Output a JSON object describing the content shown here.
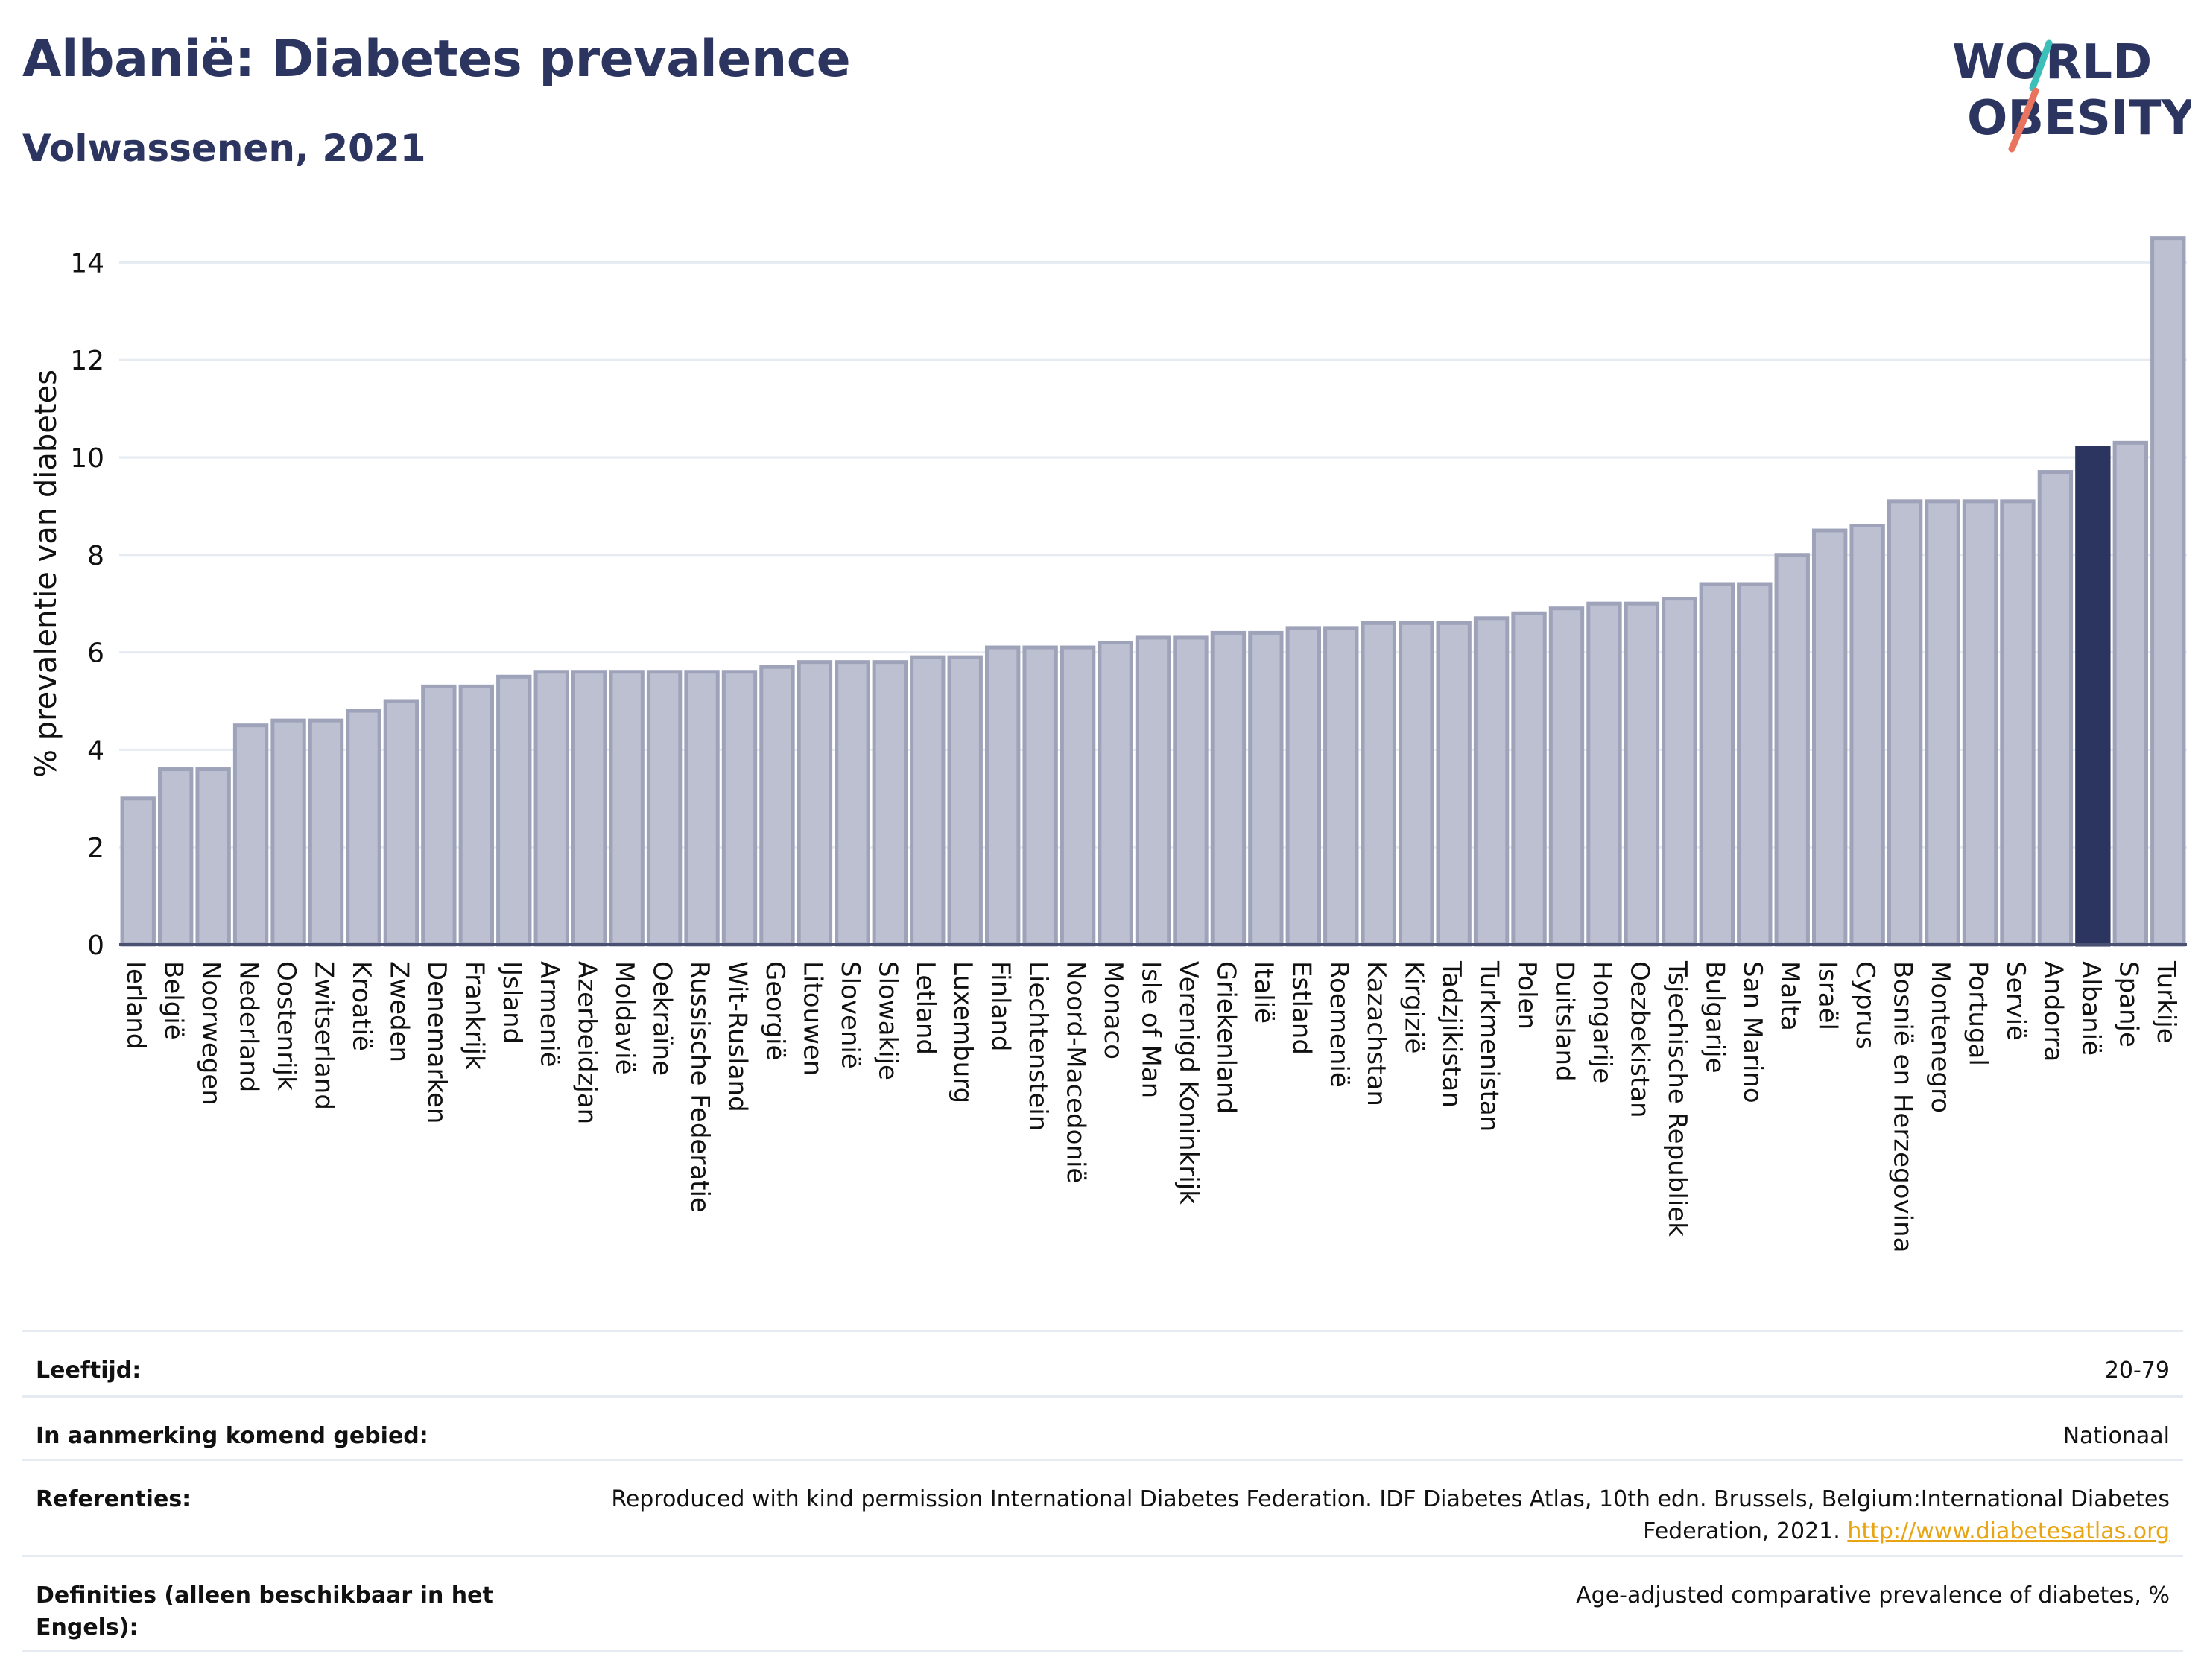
{
  "header": {
    "title": "Albanië: Diabetes prevalence",
    "subtitle": "Volwassenen, 2021"
  },
  "logo": {
    "line1": "WORLD",
    "line2": "OBESITY"
  },
  "colors": {
    "highlight_bar": "#2b3560",
    "other_bar_fill": "#bcc0d1",
    "other_bar_stroke": "#9ea3ba",
    "title": "#2b3560",
    "link": "#e8a413"
  },
  "chart_data": {
    "type": "bar",
    "title": "Albanië: Diabetes prevalence",
    "subtitle": "Volwassenen, 2021",
    "ylabel": "% prevalentie van diabetes",
    "xlabel": "",
    "ylim": [
      0,
      14.8
    ],
    "yticks": [
      0,
      2,
      4,
      6,
      8,
      10,
      12,
      14
    ],
    "grid": true,
    "highlight": "Albanië",
    "categories": [
      "Ierland",
      "België",
      "Noorwegen",
      "Nederland",
      "Oostenrijk",
      "Zwitserland",
      "Kroatië",
      "Zweden",
      "Denemarken",
      "Frankrijk",
      "IJsland",
      "Armenië",
      "Azerbeidzjan",
      "Moldavië",
      "Oekraïne",
      "Russische Federatie",
      "Wit-Rusland",
      "Georgië",
      "Litouwen",
      "Slovenië",
      "Slowakije",
      "Letland",
      "Luxemburg",
      "Finland",
      "Liechtenstein",
      "Noord-Macedonië",
      "Monaco",
      "Isle of Man",
      "Verenigd Koninkrijk",
      "Griekenland",
      "Italië",
      "Estland",
      "Roemenië",
      "Kazachstan",
      "Kirgizië",
      "Tadzjikistan",
      "Turkmenistan",
      "Polen",
      "Duitsland",
      "Hongarije",
      "Oezbekistan",
      "Tsjechische Republiek",
      "Bulgarije",
      "San Marino",
      "Malta",
      "Israël",
      "Cyprus",
      "Bosnië en Herzegovina",
      "Montenegro",
      "Portugal",
      "Servië",
      "Andorra",
      "Albanië",
      "Spanje",
      "Turkije"
    ],
    "values": [
      3.0,
      3.6,
      3.6,
      4.5,
      4.6,
      4.6,
      4.8,
      5.0,
      5.3,
      5.3,
      5.5,
      5.6,
      5.6,
      5.6,
      5.6,
      5.6,
      5.6,
      5.7,
      5.8,
      5.8,
      5.8,
      5.9,
      5.9,
      6.1,
      6.1,
      6.1,
      6.2,
      6.3,
      6.3,
      6.4,
      6.4,
      6.5,
      6.5,
      6.6,
      6.6,
      6.6,
      6.7,
      6.8,
      6.9,
      7.0,
      7.0,
      7.1,
      7.4,
      7.4,
      8.0,
      8.5,
      8.6,
      9.1,
      9.1,
      9.1,
      9.1,
      9.7,
      10.2,
      10.3,
      14.5
    ]
  },
  "footer": [
    {
      "label": "Leeftijd:",
      "value": "20-79"
    },
    {
      "label": "In aanmerking komend gebied:",
      "value": "Nationaal"
    },
    {
      "label": "Referenties:",
      "value": "Reproduced with kind permission International Diabetes Federation.  IDF Diabetes Atlas, 10th edn. Brussels, Belgium:International Diabetes Federation, 2021.",
      "link": "http://www.diabetesatlas.org"
    },
    {
      "label": "Definities (alleen beschikbaar in het Engels):",
      "value": "Age-adjusted comparative prevalence of diabetes, %"
    }
  ]
}
